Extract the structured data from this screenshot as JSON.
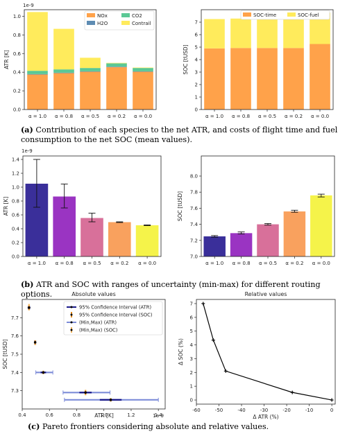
{
  "colors": {
    "nox": "#FFA24A",
    "h2o": "#5E8CB3",
    "co2": "#5BC895",
    "contrail": "#FFEB5C",
    "soc_time": "#FFA24A",
    "soc_fuel": "#FFEB5C",
    "bar_b": [
      "#3A2F9A",
      "#9A34C2",
      "#D8709A",
      "#F9A15E",
      "#F5F34A"
    ],
    "conf_atr": "#1A1A8A",
    "conf_soc": "#E88D1A",
    "minmax_atr": "#7C8BD8",
    "minmax_soc": "#F2B35B"
  },
  "captions": {
    "a_label": "(a)",
    "a_text": " Contribution of each species to the net ATR, and costs of flight time and fuel consumption to the net SOC (mean values).",
    "b_label": "(b)",
    "b_text": " ATR and SOC with ranges of uncertainty (min-max) for different routing options.",
    "c_label": "(c)",
    "c_text": " Pareto frontiers considering absolute and relative values."
  },
  "chart_data": [
    {
      "id": "a-left",
      "type": "bar",
      "stacked": true,
      "categories": [
        "α = 1.0",
        "α = 0.8",
        "α = 0.5",
        "α = 0.2",
        "α = 0.0"
      ],
      "series": [
        {
          "name": "NOx",
          "values": [
            0.375,
            0.39,
            0.405,
            0.455,
            0.405
          ]
        },
        {
          "name": "H2O",
          "values": [
            0.005,
            0.005,
            0.005,
            0.005,
            0.005
          ]
        },
        {
          "name": "CO2",
          "values": [
            0.035,
            0.035,
            0.035,
            0.035,
            0.035
          ]
        },
        {
          "name": "Contrail",
          "values": [
            0.63,
            0.435,
            0.11,
            0.005,
            0.005
          ]
        }
      ],
      "ylabel": "ATR [K]",
      "exponent": "1e-9",
      "ylim": [
        0,
        1.07
      ],
      "yticks": [
        "0.0",
        "0.2",
        "0.4",
        "0.6",
        "0.8",
        "1.0"
      ],
      "legend": [
        "NOx",
        "CO2",
        "H2O",
        "Contrail"
      ],
      "legend_position": "top-right"
    },
    {
      "id": "a-right",
      "type": "bar",
      "stacked": true,
      "categories": [
        "α = 1.0",
        "α = 0.8",
        "α = 0.5",
        "α = 0.2",
        "α = 0.0"
      ],
      "series": [
        {
          "name": "SOC-time",
          "values": [
            4.9,
            4.93,
            4.93,
            4.93,
            5.25
          ]
        },
        {
          "name": "SOC-fuel",
          "values": [
            2.35,
            2.36,
            2.47,
            2.63,
            2.51
          ]
        }
      ],
      "ylabel": "SOC [tUSD]",
      "ylim": [
        0,
        8
      ],
      "yticks": [
        "0",
        "1",
        "2",
        "3",
        "4",
        "5",
        "6",
        "7"
      ],
      "legend": [
        "SOC-time",
        "SOC-fuel"
      ],
      "legend_position": "top"
    },
    {
      "id": "b-left",
      "type": "bar",
      "categories": [
        "α = 1.0",
        "α = 0.8",
        "α = 0.5",
        "α = 0.2",
        "α = 0.0"
      ],
      "values": [
        1.05,
        0.865,
        0.555,
        0.495,
        0.45
      ],
      "err_min": [
        0.71,
        0.7,
        0.5,
        0.49,
        0.445
      ],
      "err_max": [
        1.4,
        1.045,
        0.625,
        0.5,
        0.455
      ],
      "ylabel": "ATR [K]",
      "exponent": "1e-9",
      "ylim": [
        0,
        1.45
      ],
      "yticks": [
        "0.0",
        "0.2",
        "0.4",
        "0.6",
        "0.8",
        "1.0",
        "1.2",
        "1.4"
      ]
    },
    {
      "id": "b-right",
      "type": "bar",
      "categories": [
        "α = 1.0",
        "α = 0.8",
        "α = 0.5",
        "α = 0.2",
        "α = 0.0"
      ],
      "values": [
        7.25,
        7.29,
        7.4,
        7.56,
        7.76
      ],
      "err_min": [
        7.24,
        7.28,
        7.39,
        7.55,
        7.74
      ],
      "err_max": [
        7.26,
        7.305,
        7.41,
        7.575,
        7.775
      ],
      "ylabel": "SOC [tUSD]",
      "ylim": [
        7.0,
        8.25
      ],
      "yticks": [
        "7.0",
        "7.2",
        "7.4",
        "7.6",
        "7.8",
        "8.0"
      ]
    },
    {
      "id": "c-left",
      "type": "scatter",
      "title": "Absolute values",
      "xlabel": "ATR [K]",
      "ylabel": "SOC [tUSD]",
      "exponent": "1e-9",
      "xlim": [
        0.4,
        1.45
      ],
      "ylim": [
        7.2,
        7.8
      ],
      "xticks": [
        "0.4",
        "0.6",
        "0.8",
        "1.0",
        "1.2",
        "1.4"
      ],
      "yticks": [
        "7.3",
        "7.4",
        "7.5",
        "7.6",
        "7.7"
      ],
      "points": [
        {
          "x": 0.45,
          "y": 7.755,
          "atr_conf": [
            0.44,
            0.46
          ],
          "soc_conf": [
            7.745,
            7.765
          ],
          "atr_mm": [
            0.445,
            0.455
          ],
          "soc_mm": [
            7.74,
            7.775
          ]
        },
        {
          "x": 0.495,
          "y": 7.565,
          "atr_conf": [
            0.49,
            0.5
          ],
          "soc_conf": [
            7.555,
            7.575
          ],
          "atr_mm": [
            0.49,
            0.5
          ],
          "soc_mm": [
            7.55,
            7.575
          ]
        },
        {
          "x": 0.555,
          "y": 7.4,
          "atr_conf": [
            0.535,
            0.575
          ],
          "soc_conf": [
            7.395,
            7.405
          ],
          "atr_mm": [
            0.5,
            0.625
          ],
          "soc_mm": [
            7.39,
            7.41
          ]
        },
        {
          "x": 0.865,
          "y": 7.29,
          "atr_conf": [
            0.82,
            0.91
          ],
          "soc_conf": [
            7.28,
            7.3
          ],
          "atr_mm": [
            0.7,
            1.045
          ],
          "soc_mm": [
            7.275,
            7.305
          ]
        },
        {
          "x": 1.05,
          "y": 7.25,
          "atr_conf": [
            0.97,
            1.13
          ],
          "soc_conf": [
            7.245,
            7.255
          ],
          "atr_mm": [
            0.71,
            1.4
          ],
          "soc_mm": [
            7.24,
            7.26
          ]
        }
      ],
      "legend": [
        "95% Confidence Interval (ATR)",
        "95% Confidence Interval (SOC)",
        "(Min,Max) (ATR)",
        "(Min,Max) (SOC)"
      ],
      "legend_position": "top-right"
    },
    {
      "id": "c-right",
      "type": "line",
      "title": "Relative values",
      "xlabel": "Δ ATR (%)",
      "ylabel": "Δ SOC (%)",
      "x": [
        -57,
        -52.5,
        -47,
        -17.5,
        0
      ],
      "y": [
        7.0,
        4.35,
        2.1,
        0.55,
        0.0
      ],
      "xlim": [
        -60,
        1.5
      ],
      "ylim": [
        -0.3,
        7.3
      ],
      "xticks": [
        "-60",
        "-50",
        "-40",
        "-30",
        "-20",
        "-10",
        "0"
      ],
      "yticks": [
        "0",
        "1",
        "2",
        "3",
        "4",
        "5",
        "6",
        "7"
      ]
    }
  ]
}
